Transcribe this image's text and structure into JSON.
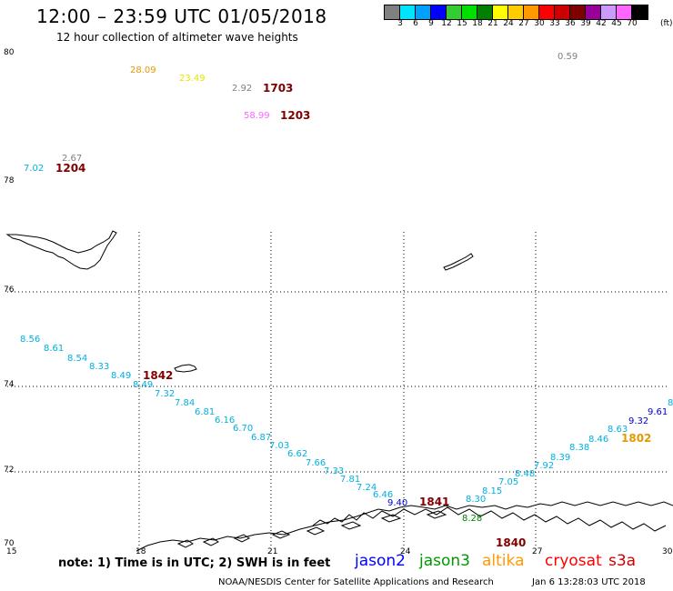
{
  "header": {
    "title": "12:00 – 23:59 UTC 01/05/2018",
    "subtitle": "12 hour collection of altimeter wave heights"
  },
  "legend": {
    "unit": "(ft)",
    "colors": [
      "#808080",
      "#00e5ff",
      "#00a0ff",
      "#0000ff",
      "#33cc33",
      "#00e000",
      "#008000",
      "#ffff00",
      "#ffcc00",
      "#ff9900",
      "#ff0000",
      "#cc0000",
      "#800000",
      "#990099",
      "#cc99ff",
      "#ff66ff",
      "#000000"
    ],
    "labels": [
      "3",
      "6",
      "9",
      "12",
      "15",
      "18",
      "21",
      "24",
      "27",
      "30",
      "33",
      "36",
      "39",
      "42",
      "45",
      "70"
    ]
  },
  "axes": {
    "lon_labels": [
      "15",
      "18",
      "21",
      "24",
      "27",
      "30"
    ],
    "lat_labels": [
      "80",
      "78",
      "76",
      "74",
      "72",
      "70"
    ]
  },
  "observations": [
    {
      "v": "28.09",
      "color": "#e69900"
    },
    {
      "v": "23.49",
      "color": "#e6e600"
    },
    {
      "v": "2.92",
      "color": "#808080"
    },
    {
      "v": "0.59",
      "color": "#808080"
    },
    {
      "v": "58.99",
      "color": "#ff66ff"
    },
    {
      "v": "2.67",
      "color": "#808080"
    },
    {
      "v": "7.02",
      "color": "#00b0e0"
    },
    {
      "v": "8.56",
      "color": "#00b0e0"
    },
    {
      "v": "8.61",
      "color": "#00b0e0"
    },
    {
      "v": "8.54",
      "color": "#00b0e0"
    },
    {
      "v": "8.33",
      "color": "#00b0e0"
    },
    {
      "v": "8.49",
      "color": "#00b0e0"
    },
    {
      "v": "8.49",
      "color": "#00b0e0"
    },
    {
      "v": "7.32",
      "color": "#00b0e0"
    },
    {
      "v": "7.84",
      "color": "#00b0e0"
    },
    {
      "v": "6.81",
      "color": "#00b0e0"
    },
    {
      "v": "6.16",
      "color": "#00b0e0"
    },
    {
      "v": "6.70",
      "color": "#00b0e0"
    },
    {
      "v": "6.87",
      "color": "#00b0e0"
    },
    {
      "v": "7.03",
      "color": "#00b0e0"
    },
    {
      "v": "6.62",
      "color": "#00b0e0"
    },
    {
      "v": "7.66",
      "color": "#00b0e0"
    },
    {
      "v": "7.33",
      "color": "#00b0e0"
    },
    {
      "v": "7.81",
      "color": "#00b0e0"
    },
    {
      "v": "7.24",
      "color": "#00b0e0"
    },
    {
      "v": "6.46",
      "color": "#00b0e0"
    },
    {
      "v": "9.40",
      "color": "#0000cc"
    },
    {
      "v": "8.15",
      "color": "#00b0e0"
    },
    {
      "v": "8.30",
      "color": "#00b0e0"
    },
    {
      "v": "7.05",
      "color": "#00b0e0"
    },
    {
      "v": "8.48",
      "color": "#00b0e0"
    },
    {
      "v": "7.92",
      "color": "#00b0e0"
    },
    {
      "v": "8.39",
      "color": "#00b0e0"
    },
    {
      "v": "8.38",
      "color": "#00b0e0"
    },
    {
      "v": "8.46",
      "color": "#00b0e0"
    },
    {
      "v": "8.63",
      "color": "#00b0e0"
    },
    {
      "v": "9.32",
      "color": "#0000cc"
    },
    {
      "v": "9.61",
      "color": "#0000cc"
    },
    {
      "v": "8",
      "color": "#00b0e0"
    },
    {
      "v": "8.28",
      "color": "#008000"
    }
  ],
  "times": [
    {
      "t": "1703",
      "color": "#800000"
    },
    {
      "t": "1203",
      "color": "#800000"
    },
    {
      "t": "1204",
      "color": "#800000"
    },
    {
      "t": "1842",
      "color": "#800000"
    },
    {
      "t": "1841",
      "color": "#800000"
    },
    {
      "t": "1840",
      "color": "#800000"
    },
    {
      "t": "1802",
      "color": "#e69900"
    }
  ],
  "footer": {
    "note": "note:  1) Time is in UTC;  2) SWH is in feet",
    "satellites": [
      {
        "name": "jason2",
        "color": "#0000ff"
      },
      {
        "name": "jason3",
        "color": "#009900"
      },
      {
        "name": "altika",
        "color": "#ff9900"
      },
      {
        "name": "cryosat",
        "color": "#ff0000"
      },
      {
        "name": "s3a",
        "color": "#cc0000"
      }
    ],
    "credit": "NOAA/NESDIS Center for Satellite Applications and Research",
    "date": "Jan  6 13:28:03 UTC 2018"
  }
}
